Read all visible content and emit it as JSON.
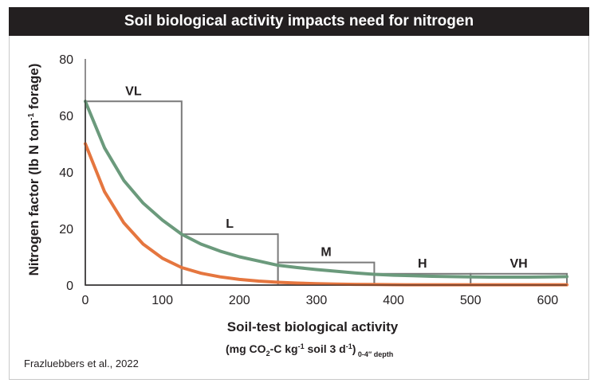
{
  "colors": {
    "title_bg": "#231f20",
    "title_fg": "#ffffff",
    "green_curve": "#6b9a7c",
    "orange_curve": "#e5763f",
    "box_stroke": "#7a7a7a",
    "axis": "#231f20"
  },
  "chart_data": {
    "type": "line",
    "title": "Soil biological activity impacts need for nitrogen",
    "xlabel": "Soil-test biological activity",
    "xlabel_units": {
      "open": "(mg CO",
      "sub1": "2",
      "mid1": "-C kg",
      "sup1": "-1",
      "mid2": " soil 3 d",
      "sup2": "-1",
      "close": ")",
      "depth": " 0-4″ depth"
    },
    "ylabel": {
      "pre": "Nitrogen factor (lb N ton",
      "sup": "-1",
      "post": " forage)"
    },
    "xlim": [
      0,
      625
    ],
    "ylim": [
      0,
      80
    ],
    "xticks": [
      0,
      100,
      200,
      300,
      400,
      500,
      600
    ],
    "yticks": [
      0,
      20,
      40,
      60,
      80
    ],
    "grid": false,
    "series": [
      {
        "color": "#6b9a7c",
        "x": [
          0,
          25,
          50,
          75,
          100,
          125,
          150,
          175,
          200,
          225,
          250,
          275,
          300,
          325,
          350,
          375,
          400,
          425,
          450,
          475,
          500,
          525,
          550,
          575,
          600,
          625
        ],
        "y": [
          65,
          48.5,
          37,
          29,
          23,
          18,
          14.5,
          12,
          10,
          8.5,
          7,
          6.2,
          5.5,
          4.9,
          4.3,
          3.8,
          3.5,
          3.3,
          3.1,
          3.0,
          2.9,
          2.8,
          2.8,
          2.8,
          2.9,
          3.0
        ]
      },
      {
        "color": "#e5763f",
        "x": [
          0,
          25,
          50,
          75,
          100,
          125,
          150,
          175,
          200,
          225,
          250,
          275,
          300,
          325,
          350,
          375,
          400,
          425,
          450,
          475,
          500,
          525,
          550,
          575,
          600,
          625
        ],
        "y": [
          50,
          33,
          22,
          14.5,
          9.5,
          6.2,
          4.2,
          2.9,
          2.0,
          1.4,
          1.0,
          0.7,
          0.5,
          0.35,
          0.25,
          0.2,
          0.15,
          0.1,
          0.1,
          0.1,
          0.1,
          0.1,
          0.1,
          0.1,
          0.1,
          0.1
        ]
      }
    ],
    "ranges": [
      {
        "label": "VL",
        "x0": 0,
        "x1": 125,
        "height": 65
      },
      {
        "label": "L",
        "x0": 125,
        "x1": 250,
        "height": 18
      },
      {
        "label": "M",
        "x0": 250,
        "x1": 375,
        "height": 8
      },
      {
        "label": "H",
        "x0": 375,
        "x1": 500,
        "height": 4
      },
      {
        "label": "VH",
        "x0": 500,
        "x1": 625,
        "height": 4
      }
    ]
  },
  "source": "Frazluebbers et al., 2022"
}
